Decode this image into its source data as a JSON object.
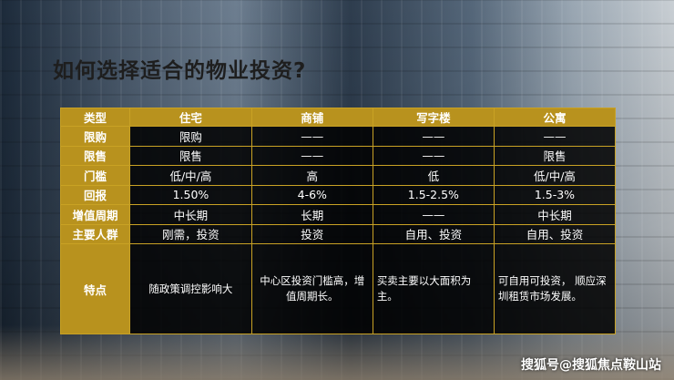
{
  "title": "如何选择适合的物业投资?",
  "table": {
    "header": [
      "类型",
      "住宅",
      "商铺",
      "写字楼",
      "公寓"
    ],
    "rows": [
      {
        "label": "限购",
        "cells": [
          "限购",
          "——",
          "——",
          "——"
        ]
      },
      {
        "label": "限售",
        "cells": [
          "限售",
          "——",
          "——",
          "限售"
        ]
      },
      {
        "label": "门槛",
        "cells": [
          "低/中/高",
          "高",
          "低",
          "低/中/高"
        ]
      },
      {
        "label": "回报",
        "cells": [
          "1.50%",
          "4-6%",
          "1.5-2.5%",
          "1.5-3%"
        ]
      },
      {
        "label": "增值周期",
        "cells": [
          "中长期",
          "长期",
          "——",
          "中长期"
        ]
      },
      {
        "label": "主要人群",
        "cells": [
          "刚需，投资",
          "投资",
          "自用、投资",
          "自用、投资"
        ]
      },
      {
        "label": "特点",
        "cells": [
          "随政策调控影响大",
          "中心区投资门槛高，增值周期长。",
          "买卖主要以大面积为主。",
          "可自用可投资， 顺应深圳租赁市场发展。"
        ]
      }
    ]
  },
  "watermark": "搜狐号@搜狐焦点鞍山站"
}
